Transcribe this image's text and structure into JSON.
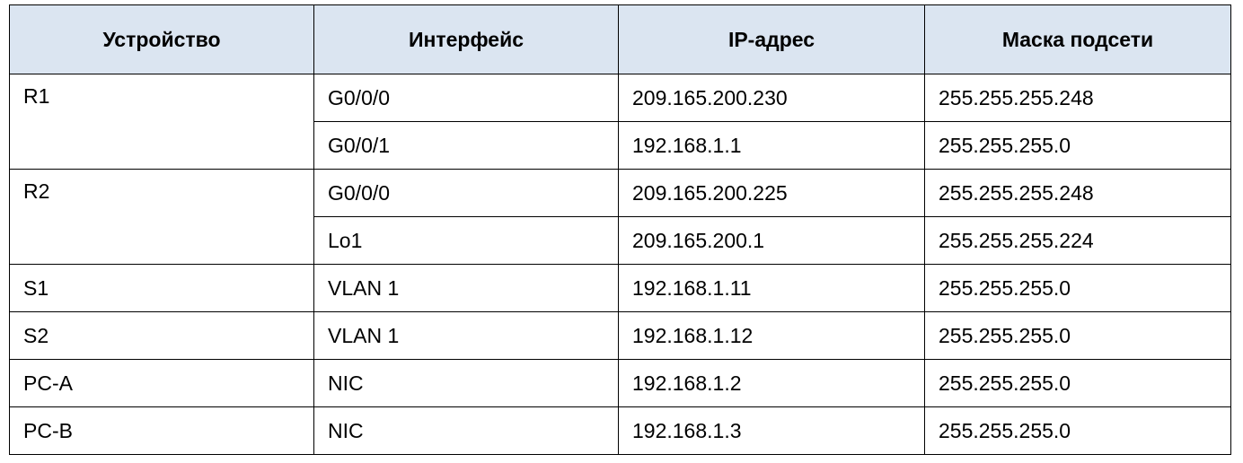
{
  "headers": {
    "device": "Устройство",
    "interface": "Интерфейс",
    "ip": "IP-адрес",
    "mask": "Маска подсети"
  },
  "rows": [
    {
      "device": "R1",
      "interface": "G0/0/0",
      "ip": "209.165.200.230",
      "mask": "255.255.255.248"
    },
    {
      "device": "",
      "interface": "G0/0/1",
      "ip": "192.168.1.1",
      "mask": "255.255.255.0"
    },
    {
      "device": "R2",
      "interface": "G0/0/0",
      "ip": "209.165.200.225",
      "mask": "255.255.255.248"
    },
    {
      "device": "",
      "interface": "Lo1",
      "ip": "209.165.200.1",
      "mask": "255.255.255.224"
    },
    {
      "device": "S1",
      "interface": "VLAN 1",
      "ip": "192.168.1.11",
      "mask": "255.255.255.0"
    },
    {
      "device": "S2",
      "interface": "VLAN 1",
      "ip": "192.168.1.12",
      "mask": "255.255.255.0"
    },
    {
      "device": "PC-A",
      "interface": "NIC",
      "ip": "192.168.1.2",
      "mask": "255.255.255.0"
    },
    {
      "device": "PC-B",
      "interface": "NIC",
      "ip": "192.168.1.3",
      "mask": "255.255.255.0"
    }
  ]
}
